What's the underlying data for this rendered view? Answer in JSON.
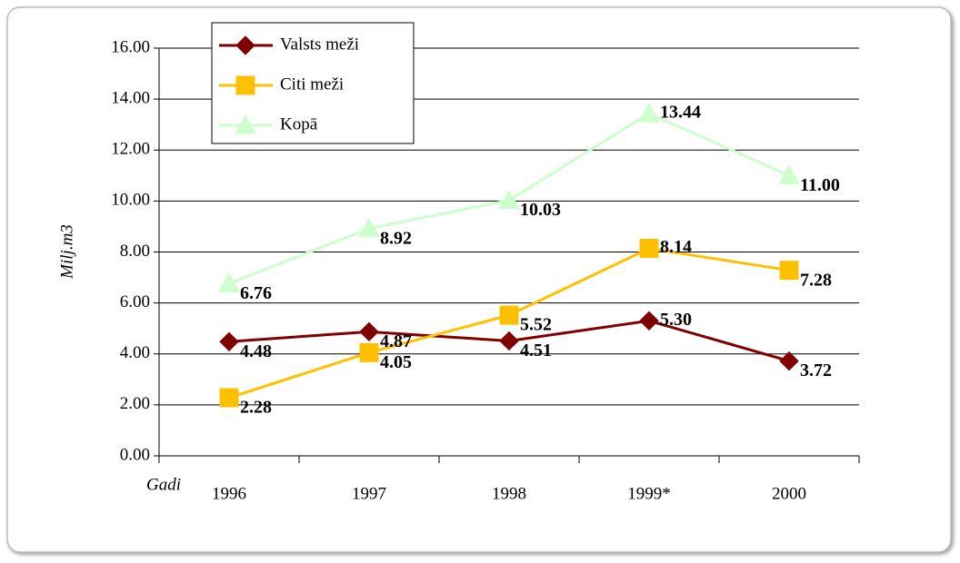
{
  "chart_data": {
    "type": "line",
    "ylabel": "Milj.m3",
    "xlabel": "Gadi",
    "categories": [
      "1996",
      "1997",
      "1998",
      "1999*",
      "2000"
    ],
    "series": [
      {
        "name": "Valsts meži",
        "color": "#800000",
        "marker": "diamond",
        "values": [
          4.48,
          4.87,
          4.51,
          5.3,
          3.72
        ],
        "value_labels": [
          "4.48",
          "4.87",
          "4.51",
          "5.30",
          "3.72"
        ]
      },
      {
        "name": "Citi meži",
        "color": "#ffc000",
        "marker": "square",
        "values": [
          2.28,
          4.05,
          5.52,
          8.14,
          7.28
        ],
        "value_labels": [
          "2.28",
          "4.05",
          "5.52",
          "8.14",
          "7.28"
        ]
      },
      {
        "name": "Kopā",
        "color": "#ccffcc",
        "marker": "triangle",
        "values": [
          6.76,
          8.92,
          10.03,
          13.44,
          11.0
        ],
        "value_labels": [
          "6.76",
          "8.92",
          "10.03",
          "13.44",
          "11.00"
        ]
      }
    ],
    "ylim": [
      0,
      16
    ],
    "yticks": [
      {
        "value": 0,
        "label": "0.00"
      },
      {
        "value": 2,
        "label": "2.00"
      },
      {
        "value": 4,
        "label": "4.00"
      },
      {
        "value": 6,
        "label": "6.00"
      },
      {
        "value": 8,
        "label": "8.00"
      },
      {
        "value": 10,
        "label": "10.00"
      },
      {
        "value": 12,
        "label": "12.00"
      },
      {
        "value": 14,
        "label": "14.00"
      },
      {
        "value": 16,
        "label": "16.00"
      }
    ],
    "grid": true,
    "legend": "top-left"
  }
}
